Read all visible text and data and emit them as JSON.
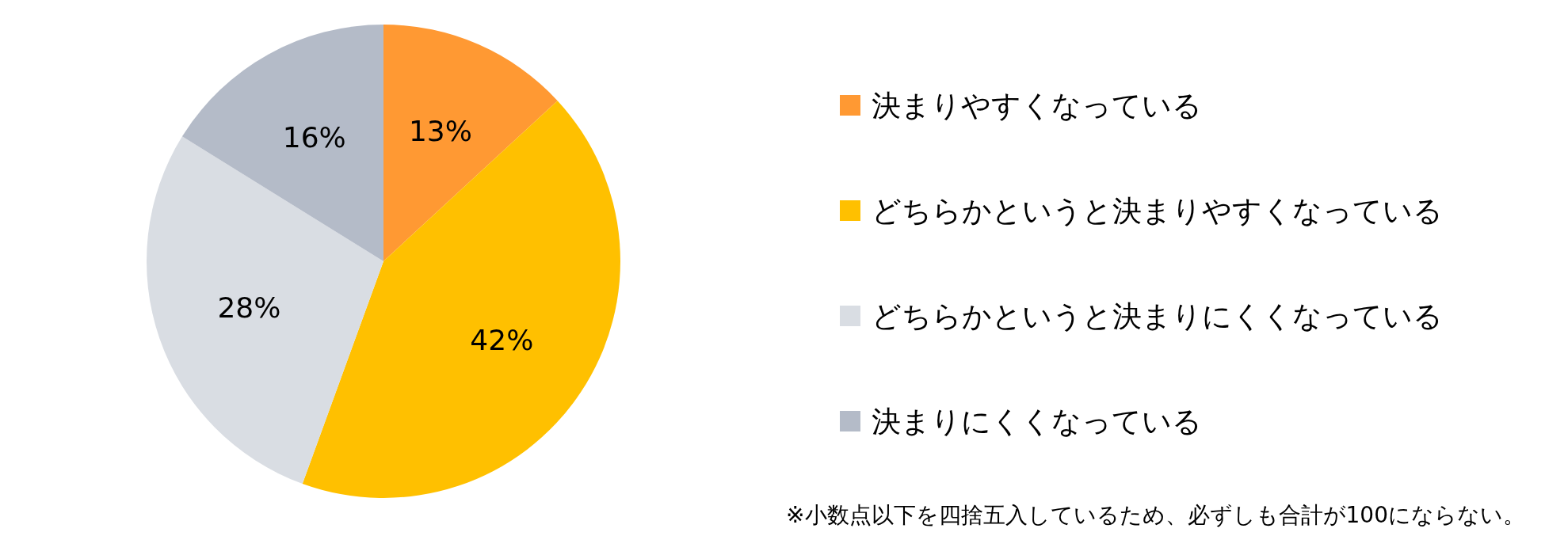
{
  "chart_data": {
    "type": "pie",
    "categories": [
      "決まりやすくなっている",
      "どちらかというと決まりやすくなっている",
      "どちらかというと決まりにくくなっている",
      "決まりにくくなっている"
    ],
    "values": [
      13,
      42,
      28,
      16
    ],
    "colors": [
      "#ff9933",
      "#ffc000",
      "#d9dde3",
      "#b4bbc8"
    ],
    "value_labels": [
      "13%",
      "42%",
      "28%",
      "16%"
    ],
    "legend": "right",
    "annotations": [
      "※小数点以下を四捨五入しているため、必ずしも合計が100にならない。"
    ]
  }
}
